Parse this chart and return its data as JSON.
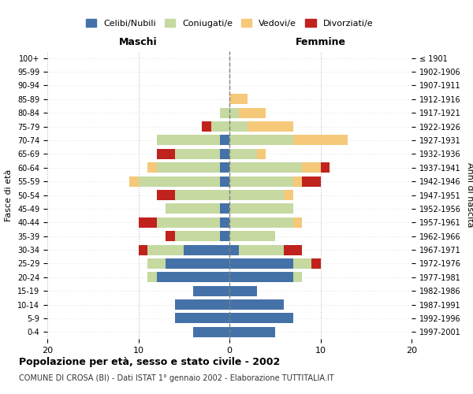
{
  "age_groups": [
    "100+",
    "95-99",
    "90-94",
    "85-89",
    "80-84",
    "75-79",
    "70-74",
    "65-69",
    "60-64",
    "55-59",
    "50-54",
    "45-49",
    "40-44",
    "35-39",
    "30-34",
    "25-29",
    "20-24",
    "15-19",
    "10-14",
    "5-9",
    "0-4"
  ],
  "birth_years": [
    "≤ 1901",
    "1902-1906",
    "1907-1911",
    "1912-1916",
    "1917-1921",
    "1922-1926",
    "1927-1931",
    "1932-1936",
    "1937-1941",
    "1942-1946",
    "1947-1951",
    "1952-1956",
    "1957-1961",
    "1962-1966",
    "1967-1971",
    "1972-1976",
    "1977-1981",
    "1982-1986",
    "1987-1991",
    "1992-1996",
    "1997-2001"
  ],
  "males": {
    "celibi": [
      0,
      0,
      0,
      0,
      0,
      0,
      1,
      1,
      1,
      1,
      0,
      1,
      1,
      1,
      5,
      7,
      8,
      4,
      6,
      6,
      4
    ],
    "coniugati": [
      0,
      0,
      0,
      0,
      1,
      2,
      7,
      5,
      7,
      9,
      6,
      6,
      7,
      5,
      4,
      2,
      1,
      0,
      0,
      0,
      0
    ],
    "vedovi": [
      0,
      0,
      0,
      0,
      0,
      0,
      0,
      0,
      1,
      1,
      0,
      0,
      0,
      0,
      0,
      0,
      0,
      0,
      0,
      0,
      0
    ],
    "divorziati": [
      0,
      0,
      0,
      0,
      0,
      1,
      0,
      2,
      0,
      0,
      2,
      0,
      2,
      1,
      1,
      0,
      0,
      0,
      0,
      0,
      0
    ]
  },
  "females": {
    "nubili": [
      0,
      0,
      0,
      0,
      0,
      0,
      0,
      0,
      0,
      0,
      0,
      0,
      0,
      0,
      1,
      7,
      7,
      3,
      6,
      7,
      5
    ],
    "coniugate": [
      0,
      0,
      0,
      0,
      1,
      2,
      7,
      3,
      8,
      7,
      6,
      7,
      7,
      5,
      5,
      2,
      1,
      0,
      0,
      0,
      0
    ],
    "vedove": [
      0,
      0,
      0,
      2,
      3,
      5,
      6,
      1,
      2,
      1,
      1,
      0,
      1,
      0,
      0,
      0,
      0,
      0,
      0,
      0,
      0
    ],
    "divorziate": [
      0,
      0,
      0,
      0,
      0,
      0,
      0,
      0,
      1,
      2,
      0,
      0,
      0,
      0,
      2,
      1,
      0,
      0,
      0,
      0,
      0
    ]
  },
  "colors": {
    "celibi_nubili": "#4472a8",
    "coniugati": "#c5d9a0",
    "vedovi": "#f5c87a",
    "divorziati": "#c0221e"
  },
  "title": "Popolazione per età, sesso e stato civile - 2002",
  "subtitle": "COMUNE DI CROSA (BI) - Dati ISTAT 1° gennaio 2002 - Elaborazione TUTTITALIA.IT",
  "xlabel_left": "Maschi",
  "xlabel_right": "Femmine",
  "ylabel_left": "Fasce di età",
  "ylabel_right": "Anni di nascita",
  "xlim": 20,
  "legend_labels": [
    "Celibi/Nubili",
    "Coniugati/e",
    "Vedovi/e",
    "Divorziati/e"
  ]
}
